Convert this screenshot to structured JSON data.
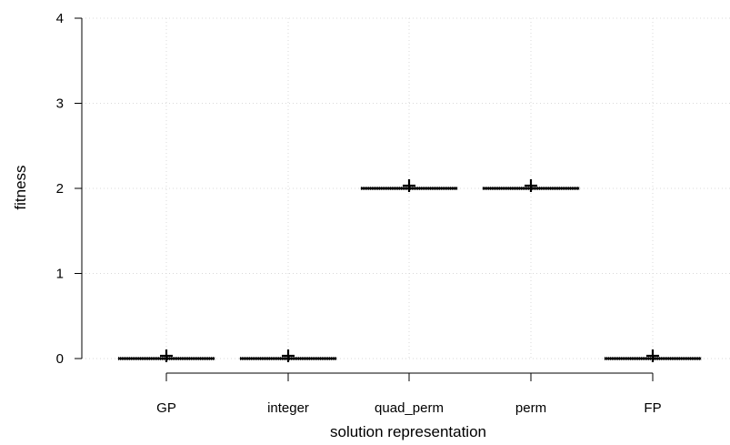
{
  "chart_data": {
    "type": "box",
    "xlabel": "solution representation",
    "ylabel": "fitness",
    "categories": [
      "GP",
      "integer",
      "quad_perm",
      "perm",
      "FP"
    ],
    "medians": [
      0,
      0,
      2,
      2,
      0
    ],
    "means": [
      0,
      0,
      2,
      2,
      0
    ],
    "yticks": [
      0,
      1,
      2,
      3,
      4
    ],
    "ylim": [
      -0.1,
      4.0
    ],
    "grid": true,
    "legend": "none",
    "colors": {
      "axis": "#000000",
      "grid": "#d9d9d9",
      "box": "#000000"
    }
  }
}
